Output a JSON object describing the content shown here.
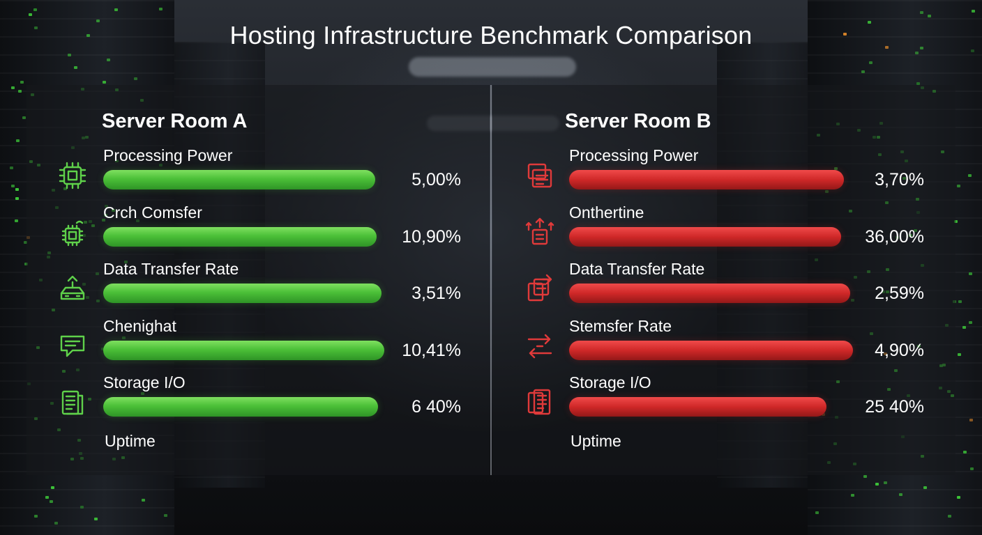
{
  "title": "Hosting Infrastructure Benchmark Comparison",
  "colors": {
    "room_a": "#4cc038",
    "room_b": "#d42a2a"
  },
  "footer_label": "Uptime",
  "chart_data": [
    {
      "type": "bar",
      "title": "Server Room A",
      "orientation": "horizontal",
      "series": [
        {
          "label": "Processing Power",
          "value_label": "5,00%",
          "icon": "cpu-chip-icon"
        },
        {
          "label": "Crch Comsfer",
          "value_label": "10,90%",
          "icon": "chip-antenna-icon"
        },
        {
          "label": "Data Transfer Rate",
          "value_label": "3,51%",
          "icon": "network-router-icon"
        },
        {
          "label": "Chenighat",
          "value_label": "10,41%",
          "icon": "chat-bubble-icon"
        },
        {
          "label": "Storage I/O",
          "value_label": "6 40%",
          "icon": "document-list-icon"
        }
      ],
      "bar_fill": [
        0.92,
        0.925,
        0.94,
        0.95,
        0.93
      ],
      "trailing_label": "Uptime"
    },
    {
      "type": "bar",
      "title": "Server Room B",
      "orientation": "horizontal",
      "series": [
        {
          "label": "Processing Power",
          "value_label": "3,70%",
          "icon": "stacked-servers-icon"
        },
        {
          "label": "Onthertine",
          "value_label": "36,00%",
          "icon": "upload-arrows-icon"
        },
        {
          "label": "Data Transfer Rate",
          "value_label": "2,59%",
          "icon": "transfer-files-icon"
        },
        {
          "label": "Stemsfer Rate",
          "value_label": "4,90%",
          "icon": "swap-arrows-icon"
        },
        {
          "label": "Storage I/O",
          "value_label": "25 40%",
          "icon": "document-copy-icon"
        }
      ],
      "bar_fill": [
        0.93,
        0.92,
        0.95,
        0.96,
        0.87
      ],
      "trailing_label": "Uptime"
    }
  ]
}
